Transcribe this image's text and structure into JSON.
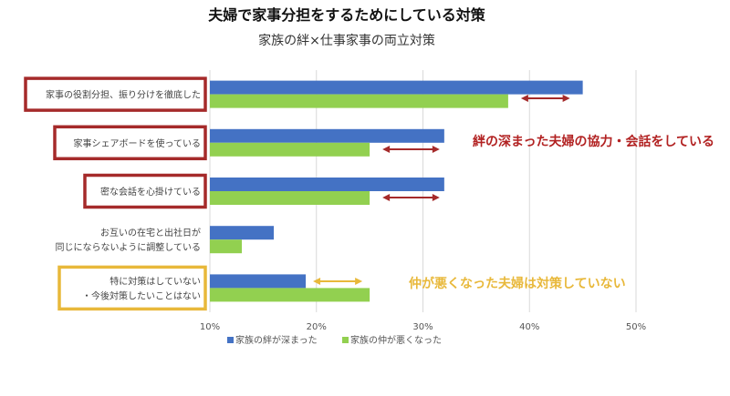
{
  "chart_data": {
    "type": "bar",
    "orientation": "horizontal",
    "title": "夫婦で家事分担をするためにしている対策",
    "subtitle": "家族の絆×仕事家事の両立対策",
    "categories": [
      [
        "家事の役割分担、振り分けを徹底した"
      ],
      [
        "家事シェアボードを使っている"
      ],
      [
        "密な会話を心掛けている"
      ],
      [
        "お互いの在宅と出社日が",
        "同じにならないように調整している"
      ],
      [
        "特に対策はしていない",
        "・今後対策したいことはない"
      ]
    ],
    "series": [
      {
        "name": "家族の絆が深まった",
        "color": "#4472c4",
        "values": [
          45,
          32,
          32,
          16,
          19
        ]
      },
      {
        "name": "家族の仲が悪くなった",
        "color": "#92d050",
        "values": [
          38,
          25,
          25,
          13,
          25
        ]
      }
    ],
    "xlim": [
      10,
      50
    ],
    "xticks": [
      10,
      20,
      30,
      40,
      50
    ],
    "xtick_labels": [
      "10%",
      "20%",
      "30%",
      "40%",
      "50%"
    ],
    "grid": true,
    "legend_position": "bottom",
    "annotations": [
      {
        "text": "絆の深まった夫婦の協力・会話をしている",
        "color": "#b22222"
      },
      {
        "text": "仲が悪くなった夫婦は対策していない",
        "color": "#e8b83a"
      }
    ],
    "highlight_colors": {
      "dark_red": "#a52a2a",
      "gold": "#e8b83a"
    }
  }
}
